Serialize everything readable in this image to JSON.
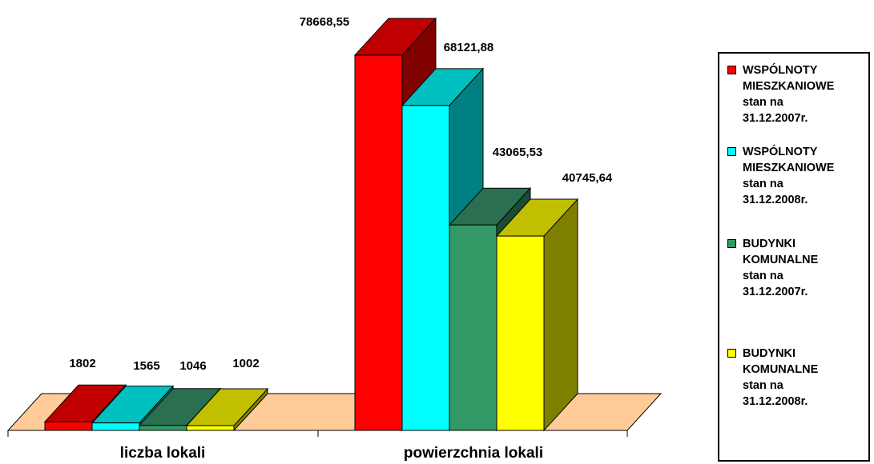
{
  "chart_data": {
    "type": "bar",
    "categories": [
      "liczba lokali",
      "powierzchnia lokali"
    ],
    "series": [
      {
        "name": "WSPÓLNOTY\nMIESZKANIOWE\nstan na\n31.12.2007r.",
        "values": [
          1802,
          78668.55
        ],
        "labels": [
          "1802",
          "78668,55"
        ]
      },
      {
        "name": "WSPÓLNOTY\nMIESZKANIOWE\nstan na\n31.12.2008r.",
        "values": [
          1565,
          68121.88
        ],
        "labels": [
          "1565",
          "68121,88"
        ]
      },
      {
        "name": "BUDYNKI\nKOMUNALNE\nstan na\n31.12.2007r.",
        "values": [
          1046,
          43065.53
        ],
        "labels": [
          "1046",
          "43065,53"
        ]
      },
      {
        "name": "BUDYNKI\nKOMUNALNE\nstan na\n31.12.2008r.",
        "values": [
          1002,
          40745.64
        ],
        "labels": [
          "1002",
          "40745,64"
        ]
      }
    ],
    "ylim": [
      0,
      80000
    ],
    "grid": false,
    "legend_position": "right",
    "style": "3d-column"
  },
  "colors": {
    "series_fill": [
      "#ff0000",
      "#00ffff",
      "#339966",
      "#ffff00"
    ],
    "series_side": [
      "#800000",
      "#008080",
      "#1a4d33",
      "#808000"
    ],
    "series_top": [
      "#c00000",
      "#00c0c0",
      "#2a7050",
      "#c0c000"
    ],
    "floor": "#ffcc99"
  }
}
